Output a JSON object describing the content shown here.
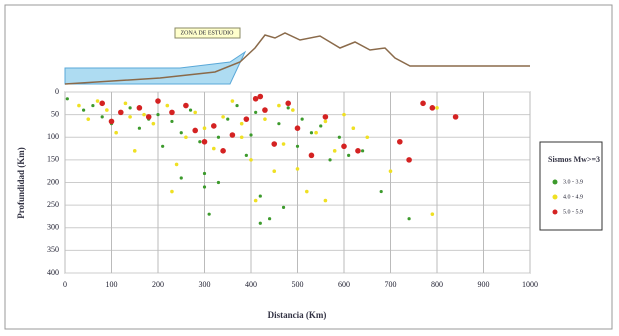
{
  "chart_data": {
    "type": "scatter",
    "annotation": "ZONA DE ESTUDIO",
    "xlabel": "Distancia (Km)",
    "ylabel": "Profundidad (Km)",
    "xlim": [
      0,
      1000
    ],
    "xticks": [
      0,
      100,
      200,
      300,
      400,
      500,
      600,
      700,
      800,
      900,
      1000
    ],
    "ylim": [
      0,
      400
    ],
    "yticks": [
      0,
      50,
      100,
      150,
      200,
      250,
      300,
      350,
      400
    ],
    "y_inverted": true,
    "grid": true,
    "legend_title": "Sismos Mw>=3",
    "legend_position": "right",
    "series": [
      {
        "name": "3.0 - 3.9",
        "color": "#3c9a2c",
        "x": [
          5,
          40,
          60,
          80,
          100,
          120,
          140,
          160,
          180,
          200,
          210,
          230,
          250,
          270,
          290,
          300,
          310,
          330,
          350,
          370,
          390,
          400,
          410,
          420,
          440,
          460,
          480,
          500,
          510,
          530,
          550,
          570,
          590,
          610,
          640,
          680,
          740,
          250,
          330,
          420,
          470,
          300
        ],
        "values": [
          15,
          40,
          30,
          55,
          70,
          45,
          35,
          80,
          60,
          50,
          120,
          65,
          90,
          40,
          110,
          180,
          270,
          100,
          60,
          30,
          140,
          95,
          45,
          230,
          280,
          70,
          35,
          120,
          60,
          90,
          75,
          150,
          100,
          140,
          130,
          220,
          280,
          190,
          200,
          290,
          255,
          210
        ]
      },
      {
        "name": "4.0 - 4.9",
        "color": "#efe023",
        "x": [
          30,
          50,
          70,
          90,
          110,
          130,
          150,
          170,
          190,
          220,
          240,
          260,
          280,
          300,
          320,
          340,
          360,
          380,
          400,
          430,
          450,
          470,
          490,
          520,
          540,
          560,
          580,
          600,
          620,
          650,
          700,
          790,
          800,
          230,
          410,
          500,
          560,
          140,
          380,
          460
        ],
        "values": [
          30,
          60,
          20,
          40,
          90,
          25,
          130,
          50,
          70,
          30,
          160,
          100,
          45,
          80,
          125,
          55,
          20,
          100,
          150,
          60,
          175,
          115,
          40,
          220,
          90,
          65,
          130,
          50,
          80,
          100,
          175,
          270,
          35,
          220,
          240,
          170,
          240,
          55,
          70,
          30
        ]
      },
      {
        "name": "5.0 - 5.9",
        "color": "#d42222",
        "x": [
          80,
          100,
          120,
          160,
          180,
          200,
          230,
          260,
          300,
          320,
          340,
          360,
          390,
          410,
          430,
          450,
          480,
          500,
          530,
          560,
          600,
          630,
          720,
          740,
          770,
          790,
          840,
          420,
          280
        ],
        "values": [
          25,
          65,
          45,
          35,
          55,
          20,
          45,
          30,
          110,
          75,
          130,
          95,
          60,
          15,
          40,
          115,
          25,
          80,
          140,
          55,
          120,
          130,
          110,
          150,
          25,
          35,
          55,
          10,
          85
        ]
      }
    ]
  }
}
